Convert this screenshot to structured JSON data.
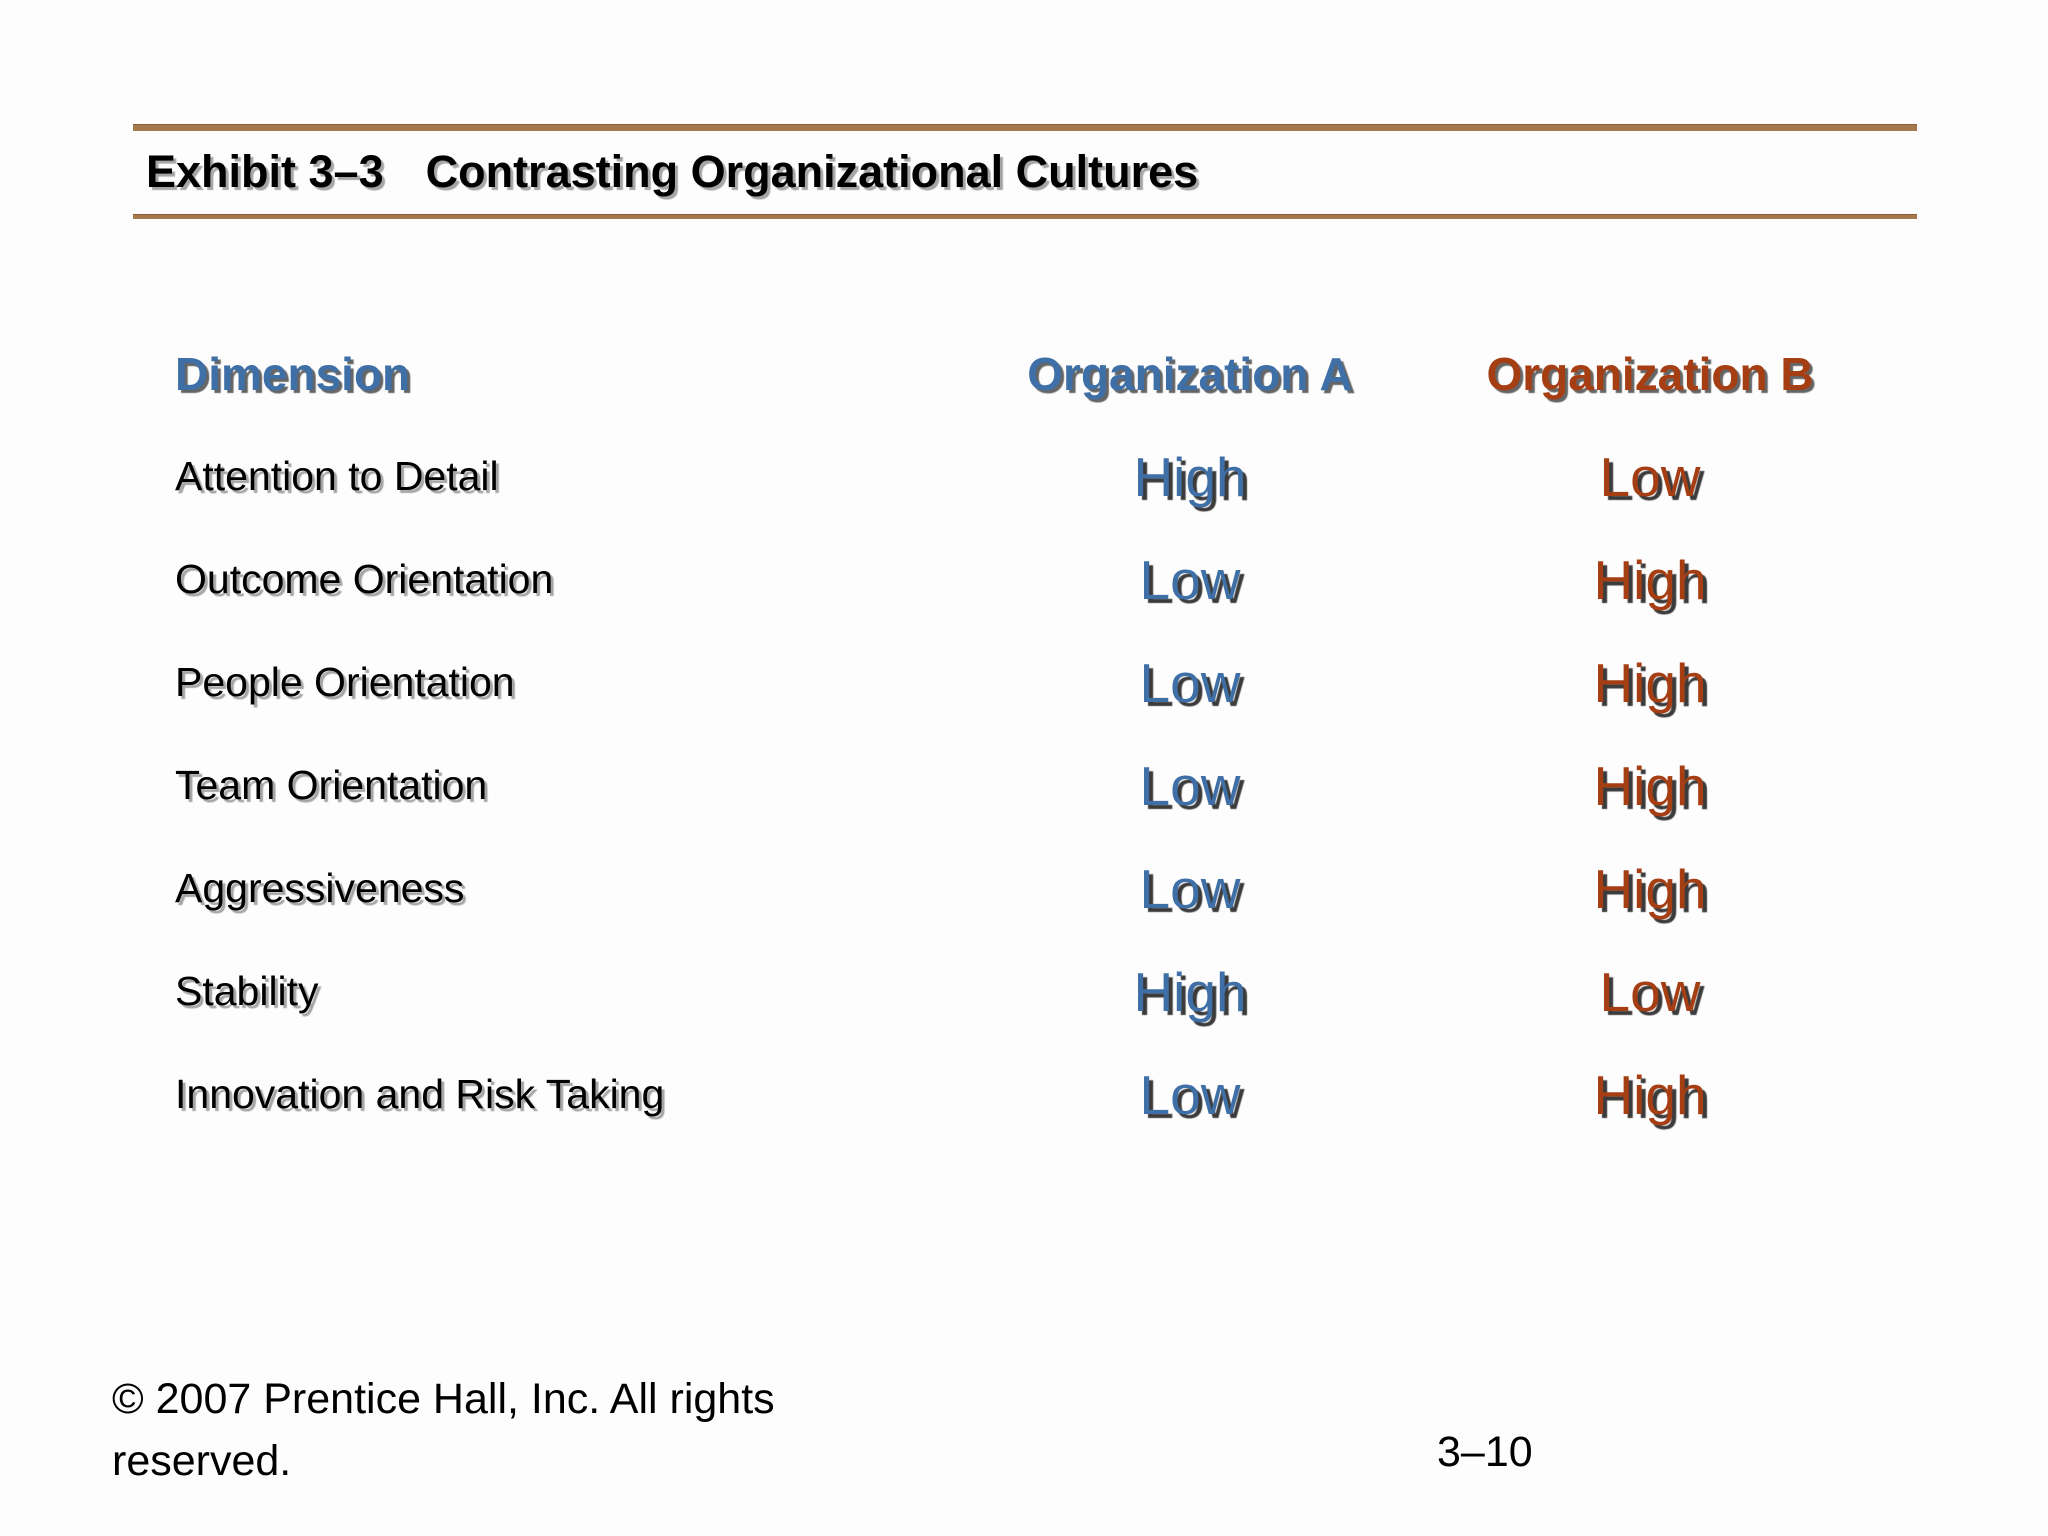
{
  "slide_header": {
    "exhibit_label": "Exhibit 3–3",
    "title": "Contrasting Organizational Cultures"
  },
  "table": {
    "columns": [
      "Dimension",
      "Organization A",
      "Organization B"
    ],
    "rows": [
      {
        "dimension": "Attention to Detail",
        "org_a": "High",
        "org_b": "Low"
      },
      {
        "dimension": "Outcome Orientation",
        "org_a": "Low",
        "org_b": "High"
      },
      {
        "dimension": "People Orientation",
        "org_a": "Low",
        "org_b": "High"
      },
      {
        "dimension": "Team Orientation",
        "org_a": "Low",
        "org_b": "High"
      },
      {
        "dimension": "Aggressiveness",
        "org_a": "Low",
        "org_b": "High"
      },
      {
        "dimension": "Stability",
        "org_a": "High",
        "org_b": "Low"
      },
      {
        "dimension": "Innovation and Risk Taking",
        "org_a": "Low",
        "org_b": "High"
      }
    ]
  },
  "footer": {
    "copyright": "© 2007 Prentice Hall, Inc. All rights reserved.",
    "page_number": "3–10"
  },
  "colors": {
    "org_a_accent": "#3E6FA6",
    "org_b_accent": "#A63E14",
    "rule_brown": "#A5794E"
  }
}
